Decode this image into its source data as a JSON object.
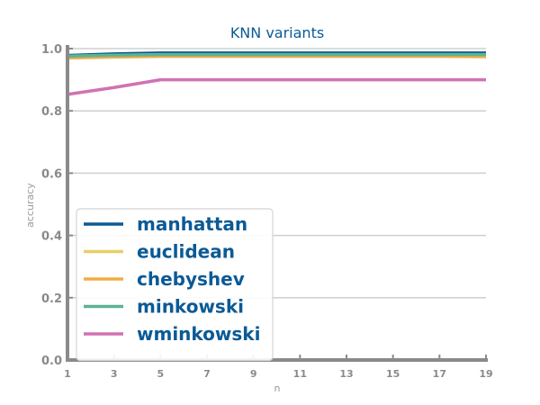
{
  "chart_data": {
    "type": "line",
    "title": "KNN variants",
    "xlabel": "n",
    "ylabel": "accuracy",
    "x": [
      1,
      3,
      5,
      7,
      9,
      11,
      13,
      15,
      17,
      19
    ],
    "xticks": [
      "1",
      "3",
      "5",
      "7",
      "9",
      "11",
      "13",
      "15",
      "17",
      "19"
    ],
    "yticks": [
      "0.0",
      "0.2",
      "0.4",
      "0.6",
      "0.8",
      "1.0"
    ],
    "xlim": [
      1,
      19
    ],
    "ylim": [
      0,
      1
    ],
    "grid": "horizontal",
    "legend_position": "lower-left",
    "series": [
      {
        "name": "manhattan",
        "color": "#0b5a95",
        "values": [
          0.978,
          0.983,
          0.986,
          0.986,
          0.986,
          0.986,
          0.986,
          0.986,
          0.986,
          0.986
        ]
      },
      {
        "name": "euclidean",
        "color": "#e8cf6a",
        "values": [
          0.972,
          0.975,
          0.976,
          0.976,
          0.976,
          0.976,
          0.976,
          0.976,
          0.976,
          0.975
        ]
      },
      {
        "name": "chebyshev",
        "color": "#f0ad44",
        "values": [
          0.97,
          0.973,
          0.975,
          0.975,
          0.975,
          0.975,
          0.975,
          0.975,
          0.975,
          0.974
        ]
      },
      {
        "name": "minkowski",
        "color": "#5db394",
        "values": [
          0.976,
          0.979,
          0.981,
          0.981,
          0.981,
          0.981,
          0.981,
          0.981,
          0.981,
          0.981
        ]
      },
      {
        "name": "wminkowski",
        "color": "#d072b2",
        "values": [
          0.853,
          0.875,
          0.9,
          0.9,
          0.9,
          0.9,
          0.9,
          0.9,
          0.9,
          0.9
        ]
      }
    ]
  }
}
